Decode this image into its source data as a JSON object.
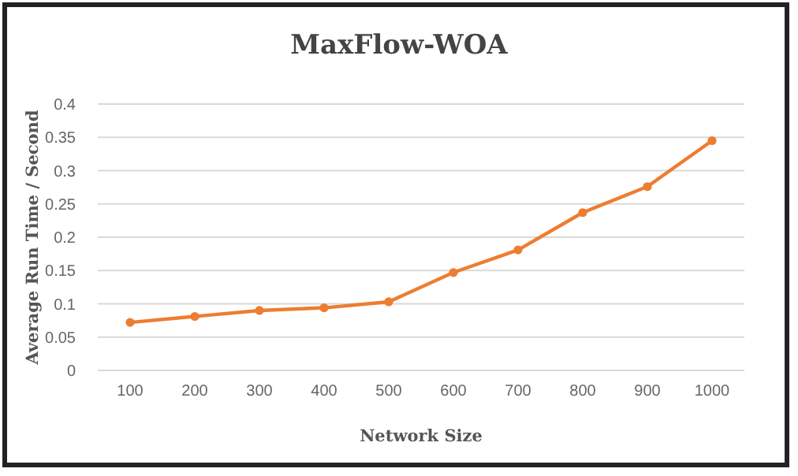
{
  "chart_data": {
    "type": "line",
    "title": "MaxFlow-WOA",
    "xlabel": "Network Size",
    "ylabel": "Average Run Time / Second",
    "categories": [
      "100",
      "200",
      "300",
      "400",
      "500",
      "600",
      "700",
      "800",
      "900",
      "1000"
    ],
    "series": [
      {
        "color": "#ed7d31",
        "values": [
          0.072,
          0.081,
          0.09,
          0.094,
          0.103,
          0.147,
          0.181,
          0.237,
          0.276,
          0.345
        ]
      }
    ],
    "ylim": [
      0,
      0.4
    ],
    "yticks": [
      0,
      {
        "value": 0.05,
        "label": "0.05"
      },
      {
        "value": 0.1,
        "label": "0.1"
      },
      {
        "value": 0.15,
        "label": "0.15"
      },
      {
        "value": 0.2,
        "label": "0.2"
      },
      {
        "value": 0.25,
        "label": "0.25"
      },
      {
        "value": 0.3,
        "label": "0.3"
      },
      {
        "value": 0.35,
        "label": "0.35"
      },
      {
        "value": 0.4,
        "label": "0.4"
      }
    ],
    "grid": "y",
    "marker": "circle",
    "line_style": "solid"
  }
}
